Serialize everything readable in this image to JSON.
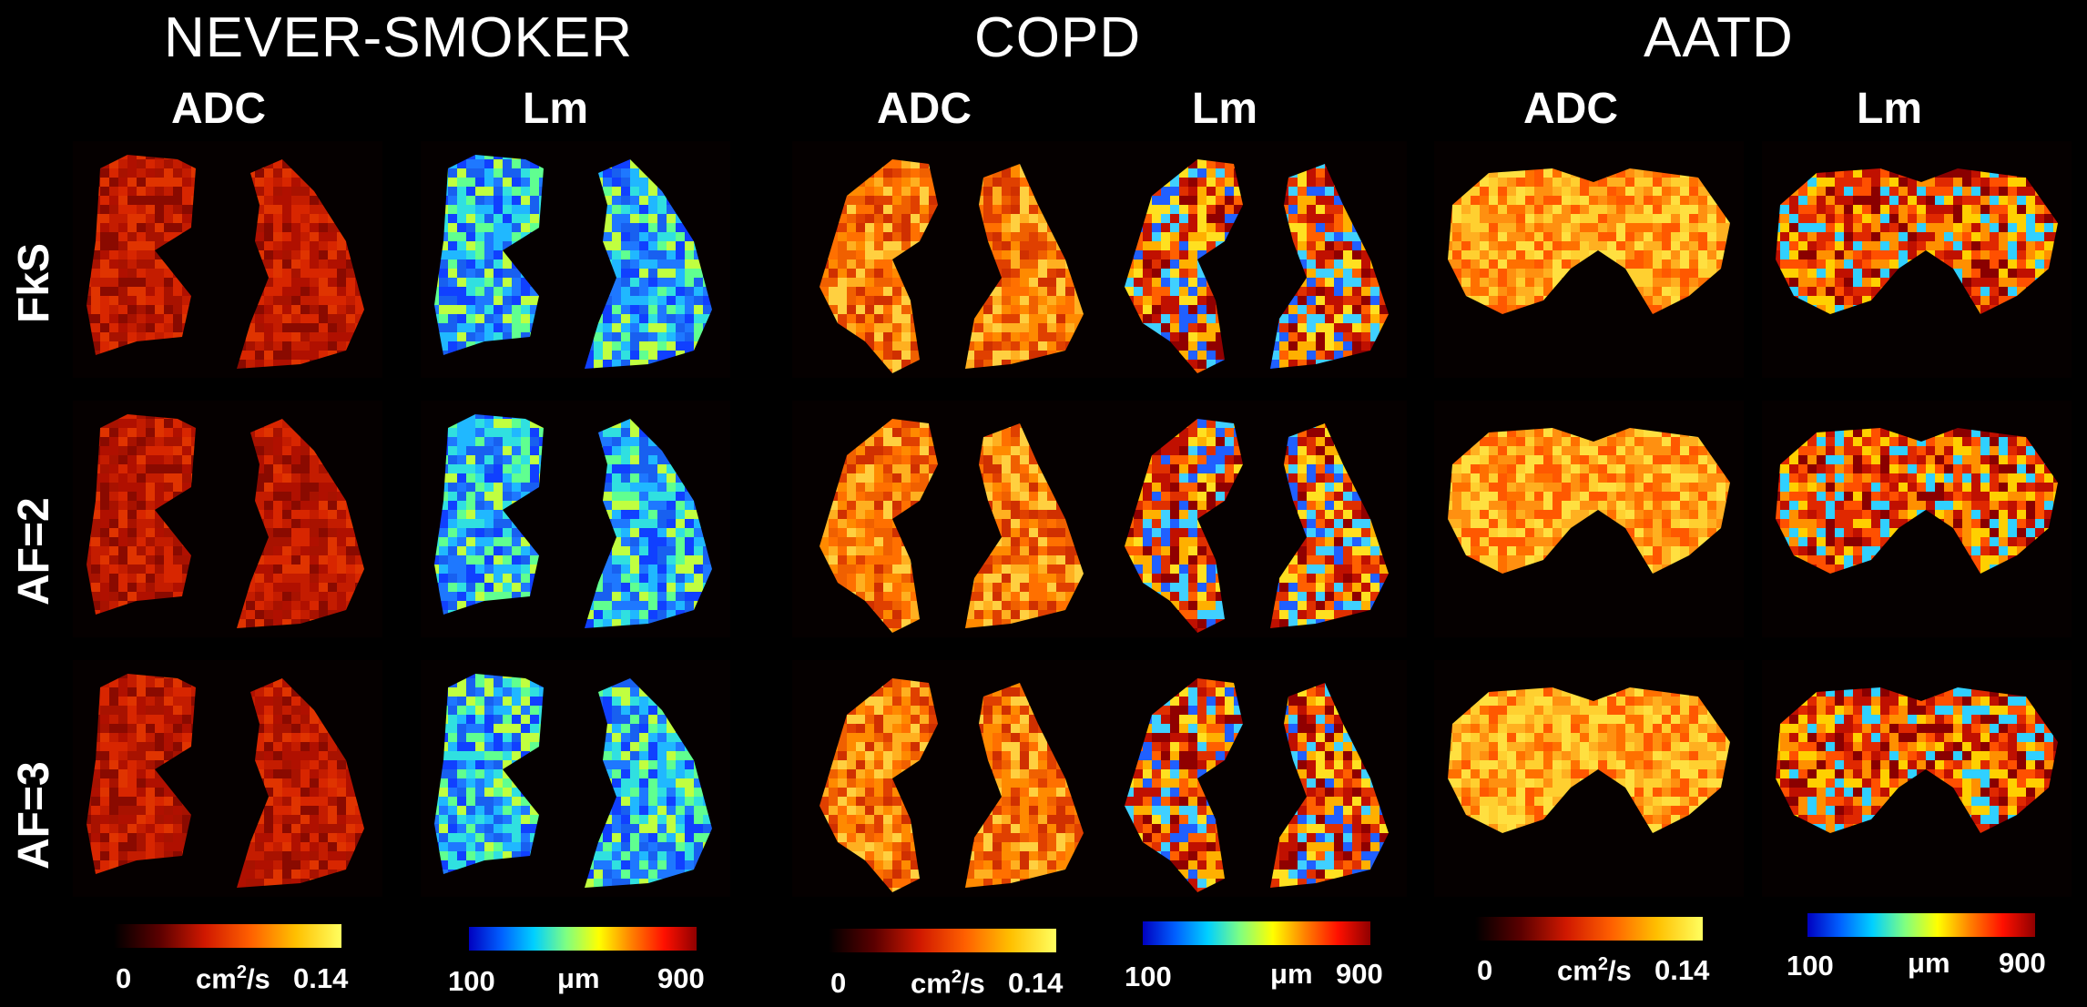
{
  "groups": [
    {
      "title": "NEVER-SMOKER",
      "columns": [
        "ADC",
        "Lm"
      ]
    },
    {
      "title": "COPD",
      "columns": [
        "ADC",
        "Lm"
      ]
    },
    {
      "title": "AATD",
      "columns": [
        "ADC",
        "Lm"
      ]
    }
  ],
  "rows": [
    "FkS",
    "AF=2",
    "AF=3"
  ],
  "colorbars": {
    "adc": {
      "min": "0",
      "max": "0.14",
      "unit": "cm",
      "unit_sup": "2",
      "unit_tail": "/s",
      "colors": [
        "#000000",
        "#5a0000",
        "#d01800",
        "#ff6000",
        "#ffc000",
        "#ffff60"
      ]
    },
    "lm": {
      "min": "100",
      "max": "900",
      "unit": "μm",
      "colors": [
        "#0000c0",
        "#0060ff",
        "#00d0ff",
        "#80ff80",
        "#ffff00",
        "#ff8000",
        "#ff1000",
        "#900000"
      ]
    }
  }
}
